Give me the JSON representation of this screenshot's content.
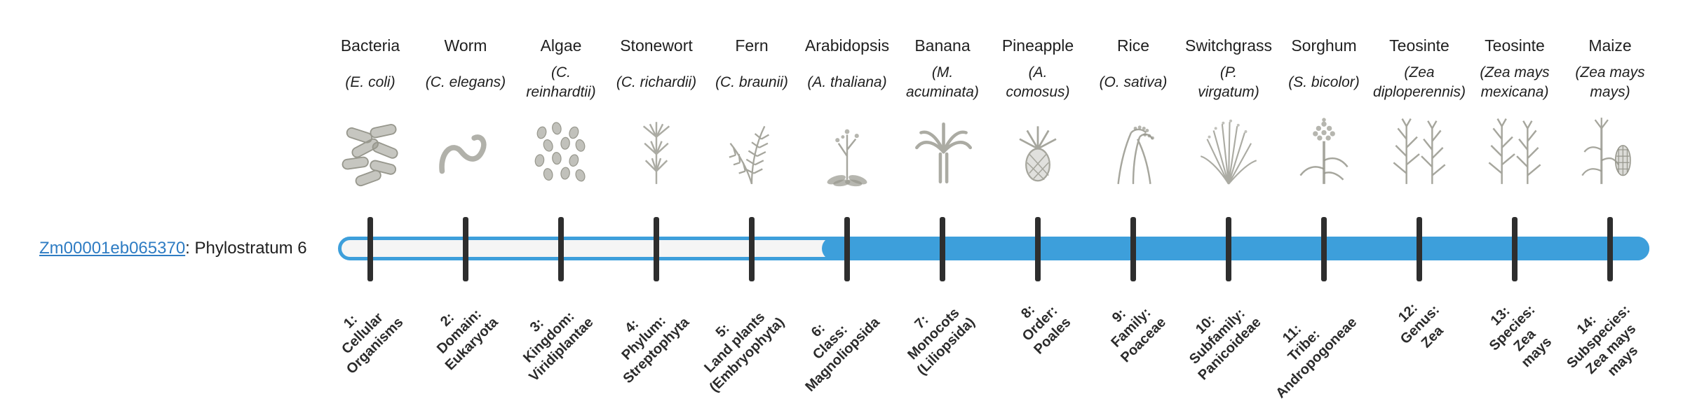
{
  "gene": {
    "id": "Zm00001eb065370",
    "suffix": ": Phylostratum 6"
  },
  "colors": {
    "accent": "#3d9fdb",
    "track": "#f5f5f5",
    "tick": "#2e2e2e",
    "icon": "#97978d",
    "link": "#2e7cc3",
    "text": "#1f1f1f",
    "label": "#2b2b2b"
  },
  "bar": {
    "filled_from": 6,
    "total": 14
  },
  "phylostrata": [
    {
      "num": 1,
      "organism": "Bacteria",
      "sci": "(E. coli)",
      "icon": "bacteria",
      "label": "1:\nCellular\nOrganisms"
    },
    {
      "num": 2,
      "organism": "Worm",
      "sci": "(C. elegans)",
      "icon": "worm",
      "label": "2:\nDomain:\nEukaryota"
    },
    {
      "num": 3,
      "organism": "Algae",
      "sci": "(C.\nreinhardtii)",
      "icon": "algae",
      "label": "3:\nKingdom:\nViridiplantae"
    },
    {
      "num": 4,
      "organism": "Stonewort",
      "sci": "(C. richardii)",
      "icon": "stonewort",
      "label": "4:\nPhylum:\nStreptophyta"
    },
    {
      "num": 5,
      "organism": "Fern",
      "sci": "(C. braunii)",
      "icon": "fern",
      "label": "5:\nLand plants\n(Embryophyta)"
    },
    {
      "num": 6,
      "organism": "Arabidopsis",
      "sci": "(A. thaliana)",
      "icon": "arabidopsis",
      "label": "6:\nClass:\nMagnoliopsida"
    },
    {
      "num": 7,
      "organism": "Banana",
      "sci": "(M.\nacuminata)",
      "icon": "banana",
      "label": "7:\nMonocots\n(Liliopsida)"
    },
    {
      "num": 8,
      "organism": "Pineapple",
      "sci": "(A.\ncomosus)",
      "icon": "pineapple",
      "label": "8:\nOrder:\nPoales"
    },
    {
      "num": 9,
      "organism": "Rice",
      "sci": "(O. sativa)",
      "icon": "rice",
      "label": "9:\nFamily:\nPoaceae"
    },
    {
      "num": 10,
      "organism": "Switchgrass",
      "sci": "(P.\nvirgatum)",
      "icon": "switchgrass",
      "label": "10:\nSubfamily:\nPanicoideae"
    },
    {
      "num": 11,
      "organism": "Sorghum",
      "sci": "(S. bicolor)",
      "icon": "sorghum",
      "label": "11:\nTribe:\nAndropogoneae"
    },
    {
      "num": 12,
      "organism": "Teosinte",
      "sci": "(Zea\ndiploperennis)",
      "icon": "teosinte",
      "label": "12:\nGenus:\nZea"
    },
    {
      "num": 13,
      "organism": "Teosinte",
      "sci": "(Zea mays\nmexicana)",
      "icon": "teosinte",
      "label": "13:\nSpecies:\nZea\nmays"
    },
    {
      "num": 14,
      "organism": "Maize",
      "sci": "(Zea mays\nmays)",
      "icon": "maize",
      "label": "14:\nSubspecies:\nZea mays\nmays"
    }
  ],
  "chart_data": {
    "type": "bar",
    "title": "Zm00001eb065370: Phylostratum 6",
    "categories": [
      "1: Cellular Organisms",
      "2: Domain: Eukaryota",
      "3: Kingdom: Viridiplantae",
      "4: Phylum: Streptophyta",
      "5: Land plants (Embryophyta)",
      "6: Class: Magnoliopsida",
      "7: Monocots (Liliopsida)",
      "8: Order: Poales",
      "9: Family: Poaceae",
      "10: Subfamily: Panicoideae",
      "11: Tribe: Andropogoneae",
      "12: Genus: Zea",
      "13: Species: Zea mays",
      "14: Subspecies: Zea mays mays"
    ],
    "series": [
      {
        "name": "phylostratum-filled",
        "values": [
          0,
          0,
          0,
          0,
          0,
          1,
          1,
          1,
          1,
          1,
          1,
          1,
          1,
          1
        ]
      }
    ],
    "xlabel": "",
    "ylabel": "",
    "note": "Horizontal timeline capsule; segment filled with accent blue from phylostratum 6 through 14, outlined-unfilled from 1 through 5."
  }
}
